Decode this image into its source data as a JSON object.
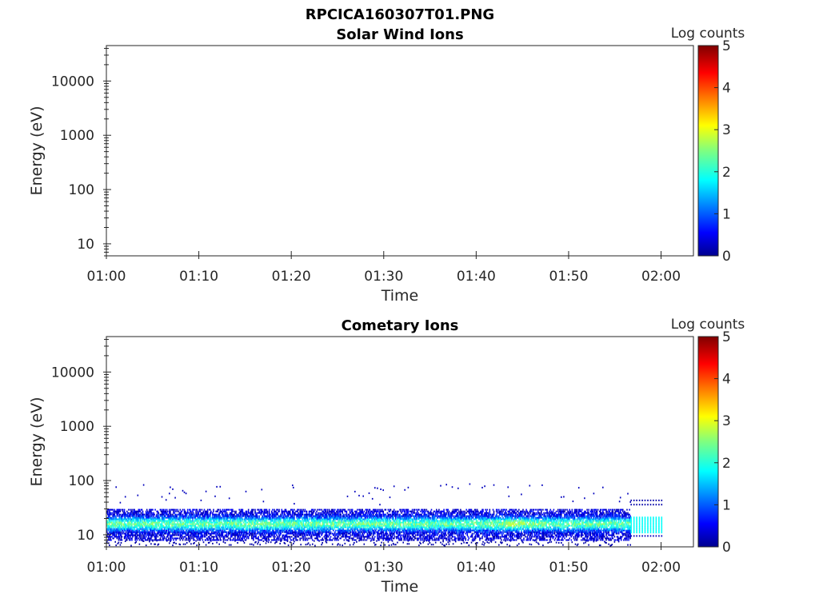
{
  "figure_title": "RPCICA160307T01.PNG",
  "chart_data": [
    {
      "type": "heatmap",
      "title": "Solar Wind Ions",
      "xlabel": "Time",
      "ylabel": "Energy (eV)",
      "x_ticks": [
        "01:00",
        "01:10",
        "01:20",
        "01:30",
        "01:40",
        "01:50",
        "02:00"
      ],
      "x_range_minutes": [
        0,
        63.5
      ],
      "y_scale": "log",
      "y_ticks": [
        "10",
        "100",
        "1000",
        "10000"
      ],
      "y_range": [
        6,
        45000
      ],
      "colorbar": {
        "label": "Log counts",
        "ticks": [
          "0",
          "1",
          "2",
          "3",
          "4",
          "5"
        ],
        "range": [
          0,
          5
        ],
        "colormap": "jet"
      },
      "cells": []
    },
    {
      "type": "heatmap",
      "title": "Cometary Ions",
      "xlabel": "Time",
      "ylabel": "Energy (eV)",
      "x_ticks": [
        "01:00",
        "01:10",
        "01:20",
        "01:30",
        "01:40",
        "01:50",
        "02:00"
      ],
      "x_range_minutes": [
        0,
        63.5
      ],
      "y_scale": "log",
      "y_ticks": [
        "10",
        "100",
        "1000",
        "10000"
      ],
      "y_range": [
        6,
        45000
      ],
      "colorbar": {
        "label": "Log counts",
        "ticks": [
          "0",
          "1",
          "2",
          "3",
          "4",
          "5"
        ],
        "range": [
          0,
          5
        ],
        "colormap": "jet"
      },
      "band_summary": {
        "time_span_minutes": [
          0,
          60
        ],
        "core_energy_eV": [
          12,
          20
        ],
        "core_log_counts": [
          1.5,
          2.4
        ],
        "edge_energy_eV": [
          8,
          30
        ],
        "edge_log_counts": [
          0.2,
          1.0
        ],
        "peak": {
          "time_minutes": 44,
          "energy_eV": 16,
          "log_counts": 2.6
        }
      },
      "cells": []
    }
  ],
  "colors": {
    "axis": "#262626",
    "background": "#ffffff"
  }
}
